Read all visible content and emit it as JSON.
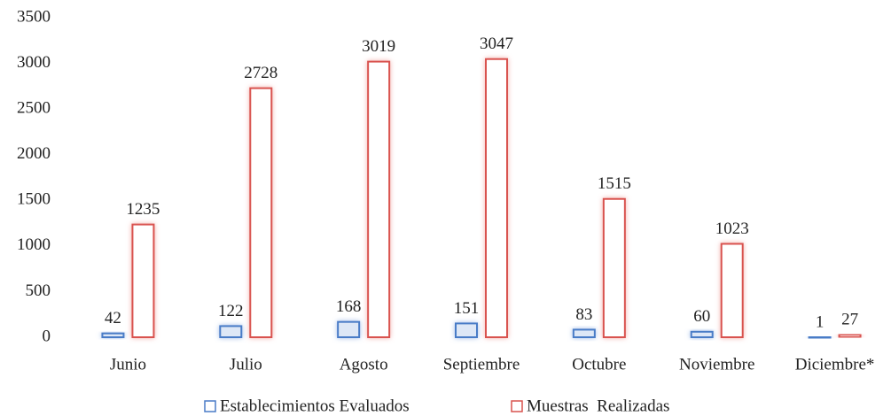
{
  "chart_data": {
    "type": "bar",
    "categories": [
      "Junio",
      "Julio",
      "Agosto",
      "Septiembre",
      "Octubre",
      "Noviembre",
      "Diciembre*"
    ],
    "series": [
      {
        "name": "Establecimientos Evaluados",
        "color": "#4a7cc7",
        "values": [
          42,
          122,
          168,
          151,
          83,
          60,
          1
        ]
      },
      {
        "name": "Muestras  Realizadas",
        "color": "#d9534f",
        "values": [
          1235,
          2728,
          3019,
          3047,
          1515,
          1023,
          27
        ]
      }
    ],
    "ylim": [
      0,
      3500
    ],
    "yticks": [
      0,
      500,
      1000,
      1500,
      2000,
      2500,
      3000,
      3500
    ],
    "legend": "bottom"
  }
}
